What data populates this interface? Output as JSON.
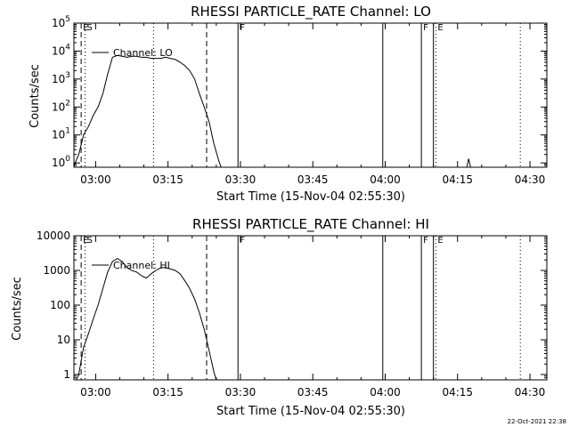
{
  "colors": {
    "background": "#ffffff",
    "foreground": "#000000"
  },
  "footer": {
    "stamp": "22-Oct-2021 22:38"
  },
  "chart_data": [
    {
      "type": "line",
      "title": "RHESSI PARTICLE_RATE Channel: LO",
      "xlabel": "Start Time (15-Nov-04 02:55:30)",
      "ylabel": "Counts/sec",
      "log_y": true,
      "x_units": "minutes since 02:55:30",
      "xlim": [
        0,
        98
      ],
      "ylim": [
        0.7,
        100000
      ],
      "x_tick_labels": [
        {
          "x": 4.5,
          "label": "03:00"
        },
        {
          "x": 19.5,
          "label": "03:15"
        },
        {
          "x": 34.5,
          "label": "03:30"
        },
        {
          "x": 49.5,
          "label": "03:45"
        },
        {
          "x": 64.5,
          "label": "04:00"
        },
        {
          "x": 79.5,
          "label": "04:15"
        },
        {
          "x": 94.5,
          "label": "04:30"
        }
      ],
      "y_tick_labels": [
        {
          "v": 1,
          "base": "10",
          "exp": "0"
        },
        {
          "v": 10,
          "base": "10",
          "exp": "1"
        },
        {
          "v": 100,
          "base": "10",
          "exp": "2"
        },
        {
          "v": 1000,
          "base": "10",
          "exp": "3"
        },
        {
          "v": 10000,
          "base": "10",
          "exp": "4"
        },
        {
          "v": 100000,
          "base": "10",
          "exp": "5"
        }
      ],
      "legend": {
        "entries": [
          "Channel: LO"
        ],
        "position": "top-left"
      },
      "vlines": [
        {
          "x": 1.5,
          "style": "dashed",
          "label": "E"
        },
        {
          "x": 2.3,
          "style": "dotted",
          "label": "S"
        },
        {
          "x": 16.5,
          "style": "dotted",
          "label": ""
        },
        {
          "x": 27.5,
          "style": "dashed",
          "label": ""
        },
        {
          "x": 34.0,
          "style": "solid",
          "label": "F"
        },
        {
          "x": 64.0,
          "style": "solid",
          "label": ""
        },
        {
          "x": 72.0,
          "style": "solid",
          "label": "F"
        },
        {
          "x": 74.5,
          "style": "solid",
          "label": ""
        },
        {
          "x": 75.0,
          "style": "dotted",
          "label": "E"
        },
        {
          "x": 92.5,
          "style": "dotted",
          "label": ""
        }
      ],
      "series": [
        {
          "x": [
            0,
            1,
            2,
            3,
            4,
            5,
            6,
            7,
            8,
            9,
            10,
            11,
            12,
            13,
            14,
            15,
            16,
            17,
            18,
            19,
            20,
            21,
            22,
            23,
            24,
            25,
            26,
            27,
            28,
            29,
            30,
            30.5
          ],
          "y": [
            0.8,
            2,
            10,
            20,
            50,
            100,
            300,
            1500,
            6000,
            7000,
            6500,
            6000,
            6500,
            6500,
            6000,
            6000,
            5500,
            5500,
            5500,
            6000,
            5500,
            5000,
            4000,
            3000,
            2000,
            1000,
            300,
            100,
            30,
            5,
            1.2,
            0.7
          ]
        },
        {
          "x": [
            81.4,
            81.8,
            82.2
          ],
          "y": [
            0.7,
            1.4,
            0.7
          ]
        }
      ]
    },
    {
      "type": "line",
      "title": "RHESSI PARTICLE_RATE Channel: HI",
      "xlabel": "Start Time (15-Nov-04 02:55:30)",
      "ylabel": "Counts/sec",
      "log_y": true,
      "x_units": "minutes since 02:55:30",
      "xlim": [
        0,
        98
      ],
      "ylim": [
        0.7,
        10000
      ],
      "x_tick_labels": [
        {
          "x": 4.5,
          "label": "03:00"
        },
        {
          "x": 19.5,
          "label": "03:15"
        },
        {
          "x": 34.5,
          "label": "03:30"
        },
        {
          "x": 49.5,
          "label": "03:45"
        },
        {
          "x": 64.5,
          "label": "04:00"
        },
        {
          "x": 79.5,
          "label": "04:15"
        },
        {
          "x": 94.5,
          "label": "04:30"
        }
      ],
      "y_tick_labels": [
        {
          "v": 1,
          "base": "1",
          "exp": ""
        },
        {
          "v": 10,
          "base": "10",
          "exp": ""
        },
        {
          "v": 100,
          "base": "100",
          "exp": ""
        },
        {
          "v": 1000,
          "base": "1000",
          "exp": ""
        },
        {
          "v": 10000,
          "base": "10000",
          "exp": ""
        }
      ],
      "legend": {
        "entries": [
          "Channel: HI"
        ],
        "position": "top-left"
      },
      "vlines": [
        {
          "x": 1.5,
          "style": "dashed",
          "label": "E"
        },
        {
          "x": 2.3,
          "style": "dotted",
          "label": "S"
        },
        {
          "x": 16.5,
          "style": "dotted",
          "label": ""
        },
        {
          "x": 27.5,
          "style": "dashed",
          "label": ""
        },
        {
          "x": 34.0,
          "style": "solid",
          "label": "F"
        },
        {
          "x": 64.0,
          "style": "solid",
          "label": ""
        },
        {
          "x": 72.0,
          "style": "solid",
          "label": "F"
        },
        {
          "x": 74.5,
          "style": "solid",
          "label": ""
        },
        {
          "x": 75.0,
          "style": "dotted",
          "label": "E"
        },
        {
          "x": 92.5,
          "style": "dotted",
          "label": ""
        }
      ],
      "series": [
        {
          "x": [
            0.5,
            1,
            2,
            3,
            4,
            5,
            6,
            7,
            8,
            9,
            10,
            11,
            12,
            13,
            14,
            15,
            16,
            17,
            18,
            19,
            20,
            21,
            22,
            23,
            24,
            25,
            26,
            27,
            28,
            29,
            29.5
          ],
          "y": [
            0.7,
            1,
            6,
            15,
            40,
            100,
            300,
            900,
            1800,
            2200,
            1800,
            1200,
            1000,
            900,
            700,
            600,
            800,
            1000,
            1200,
            1200,
            1100,
            1000,
            800,
            500,
            300,
            150,
            60,
            20,
            5,
            1.2,
            0.7
          ]
        }
      ]
    }
  ]
}
